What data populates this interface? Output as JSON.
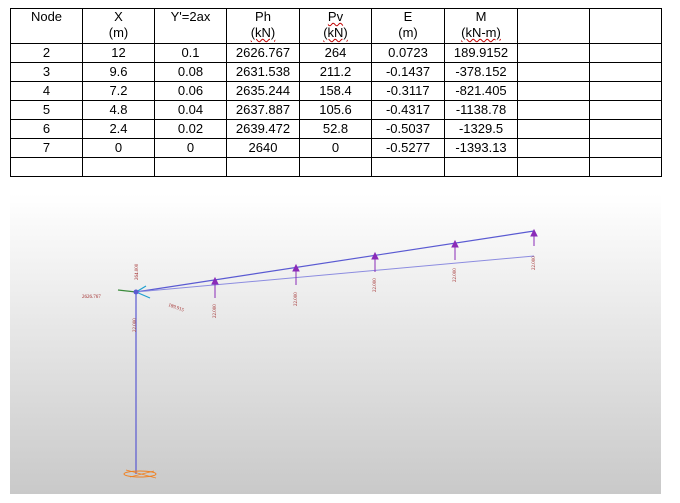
{
  "table": {
    "headers": [
      {
        "line1": "Node",
        "line2": ""
      },
      {
        "line1": "X",
        "line2": "(m)"
      },
      {
        "line1": "Y'=2ax",
        "line2": ""
      },
      {
        "line1": "Ph",
        "line2": "(kN)"
      },
      {
        "line1": "Pv",
        "line2": "(kN)"
      },
      {
        "line1": "E",
        "line2": "(m)"
      },
      {
        "line1": "M",
        "line2": "(kN-m)"
      },
      {
        "line1": "",
        "line2": ""
      },
      {
        "line1": "",
        "line2": ""
      }
    ],
    "rows": [
      [
        "2",
        "12",
        "0.1",
        "2626.767",
        "264",
        "0.0723",
        "189.9152",
        "",
        ""
      ],
      [
        "3",
        "9.6",
        "0.08",
        "2631.538",
        "211.2",
        "-0.1437",
        "-378.152",
        "",
        ""
      ],
      [
        "4",
        "7.2",
        "0.06",
        "2635.244",
        "158.4",
        "-0.3117",
        "-821.405",
        "",
        ""
      ],
      [
        "5",
        "4.8",
        "0.04",
        "2637.887",
        "105.6",
        "-0.4317",
        "-1138.78",
        "",
        ""
      ],
      [
        "6",
        "2.4",
        "0.02",
        "2639.472",
        "52.8",
        "-0.5037",
        "-1329.5",
        "",
        ""
      ],
      [
        "7",
        "0",
        "0",
        "2640",
        "0",
        "-0.5277",
        "-1393.13",
        "",
        ""
      ],
      [
        "",
        "",
        "",
        "",
        "",
        "",
        "",
        "",
        ""
      ]
    ]
  },
  "model": {
    "load_labels": [
      "22.000",
      "22.000",
      "22.000",
      "22.000",
      "22.000",
      "22.000"
    ],
    "column_label": "22.000",
    "top_reaction_label": "264.000",
    "horizontal_reaction_label": "2626.767",
    "moment_label": "189.915",
    "colors": {
      "member": "#5a5ad2",
      "load_arrow": "#8a2bb8",
      "label": "#9b1c1c",
      "support": "#f08020",
      "axis_x": "#3a8a3a",
      "axis_y": "#1f9fd0"
    }
  }
}
